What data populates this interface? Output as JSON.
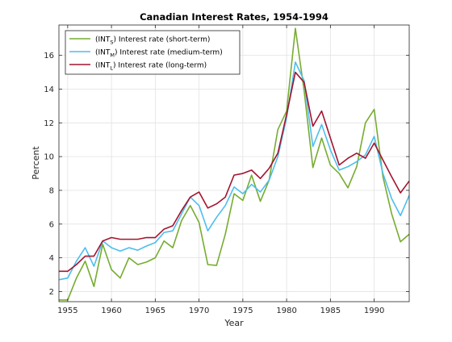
{
  "chart_data": {
    "type": "line",
    "title": "Canadian Interest Rates, 1954-1994",
    "xlabel": "Year",
    "ylabel": "Percent",
    "xlim": [
      1954,
      1994
    ],
    "ylim": [
      1.4,
      17.8
    ],
    "x_ticks": [
      1955,
      1960,
      1965,
      1970,
      1975,
      1980,
      1985,
      1990
    ],
    "y_ticks": [
      2,
      4,
      6,
      8,
      10,
      12,
      14,
      16
    ],
    "grid": true,
    "legend_position": "top-left",
    "x": [
      1954,
      1955,
      1956,
      1957,
      1958,
      1959,
      1960,
      1961,
      1962,
      1963,
      1964,
      1965,
      1966,
      1967,
      1968,
      1969,
      1970,
      1971,
      1972,
      1973,
      1974,
      1975,
      1976,
      1977,
      1978,
      1979,
      1980,
      1981,
      1982,
      1983,
      1984,
      1985,
      1986,
      1987,
      1988,
      1989,
      1990,
      1991,
      1992,
      1993,
      1994
    ],
    "series": [
      {
        "name": "Interest rate (short-term)",
        "label_base": "(INT",
        "label_sub": "S",
        "label_rest": ") Interest rate (short-term)",
        "color": "#77ac30",
        "values": [
          1.5,
          1.5,
          2.8,
          3.8,
          2.3,
          4.8,
          3.3,
          2.8,
          4.0,
          3.6,
          3.75,
          4.0,
          5.0,
          4.6,
          6.2,
          7.1,
          6.1,
          3.6,
          3.55,
          5.4,
          7.8,
          7.4,
          8.9,
          7.35,
          8.6,
          11.6,
          12.7,
          17.6,
          13.9,
          9.35,
          11.1,
          9.5,
          9.0,
          8.15,
          9.4,
          12.0,
          12.8,
          8.8,
          6.6,
          4.95,
          5.4
        ]
      },
      {
        "name": "Interest rate (medium-term)",
        "label_base": "(INT",
        "label_sub": "M",
        "label_rest": ") Interest rate (medium-term)",
        "color": "#4dbeee",
        "values": [
          2.7,
          2.8,
          3.8,
          4.6,
          3.5,
          5.0,
          4.6,
          4.4,
          4.6,
          4.45,
          4.7,
          4.9,
          5.5,
          5.6,
          6.6,
          7.6,
          7.1,
          5.6,
          6.4,
          7.1,
          8.2,
          7.8,
          8.35,
          7.9,
          8.6,
          10.0,
          12.3,
          15.6,
          14.5,
          10.6,
          11.9,
          10.4,
          9.2,
          9.4,
          9.7,
          10.1,
          11.2,
          9.0,
          7.5,
          6.5,
          7.7
        ]
      },
      {
        "name": "Interest rate (long-term)",
        "label_base": "(INT",
        "label_sub": "L",
        "label_rest": ") Interest rate (long-term)",
        "color": "#a2142f",
        "values": [
          3.2,
          3.2,
          3.6,
          4.1,
          4.1,
          5.0,
          5.2,
          5.1,
          5.1,
          5.1,
          5.2,
          5.2,
          5.7,
          5.9,
          6.8,
          7.6,
          7.9,
          6.95,
          7.2,
          7.6,
          8.9,
          9.0,
          9.2,
          8.7,
          9.3,
          10.2,
          12.5,
          15.0,
          14.4,
          11.8,
          12.7,
          11.1,
          9.5,
          9.9,
          10.2,
          9.9,
          10.8,
          9.8,
          8.8,
          7.85,
          8.55
        ]
      }
    ]
  }
}
